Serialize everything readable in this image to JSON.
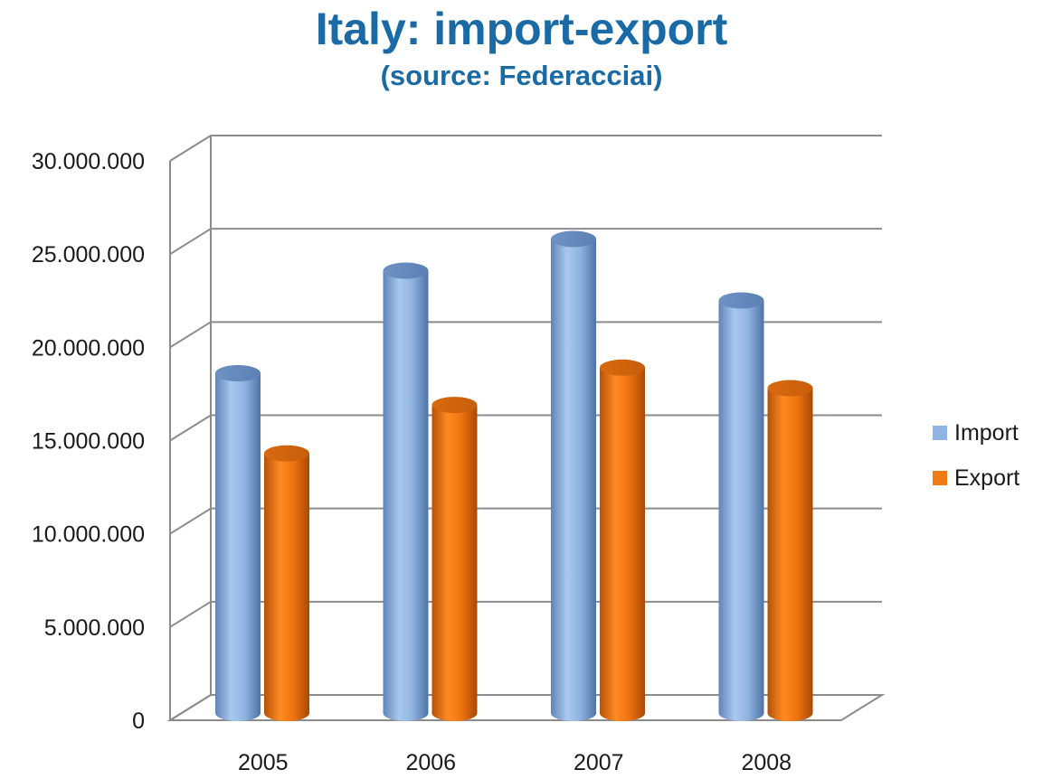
{
  "chart_data": {
    "type": "bar",
    "title": "Italy: import-export",
    "subtitle": "(source: Federacciai)",
    "categories": [
      "2005",
      "2006",
      "2007",
      "2008"
    ],
    "series": [
      {
        "name": "Import",
        "color": "#8db4e2",
        "values": [
          18000000,
          23500000,
          25200000,
          21900000
        ]
      },
      {
        "name": "Export",
        "color": "#f07b16",
        "values": [
          13700000,
          16300000,
          18300000,
          17200000
        ]
      }
    ],
    "yticks": [
      "0",
      "5.000.000",
      "10.000.000",
      "15.000.000",
      "20.000.000",
      "25.000.000",
      "30.000.000"
    ],
    "ylim": [
      0,
      30000000
    ],
    "grid": true,
    "legend": "right",
    "style": "3d-cylinder"
  }
}
